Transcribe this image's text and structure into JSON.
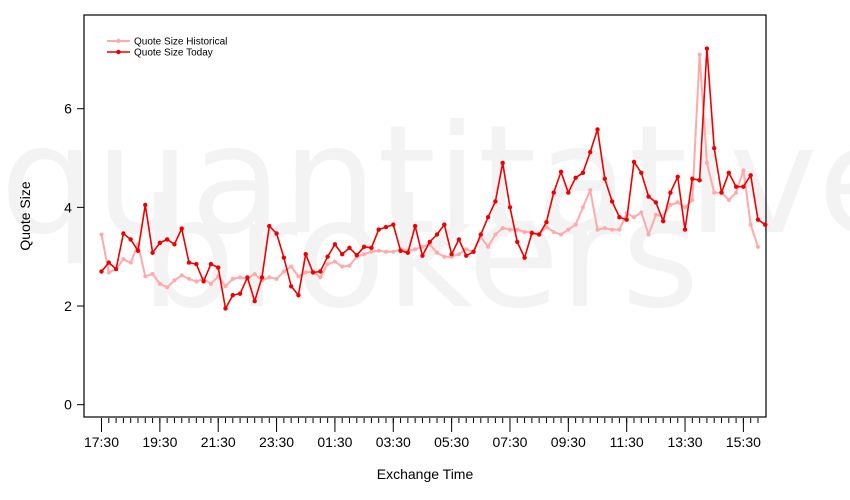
{
  "watermark": {
    "line1": "quantitative",
    "line2": "brokers"
  },
  "chart_data": {
    "type": "line",
    "xlabel": "Exchange Time",
    "ylabel": "Quote Size",
    "ylim": [
      -0.25,
      7.9
    ],
    "y_ticks": [
      0,
      2,
      4,
      6
    ],
    "x_tick_labels": [
      "17:30",
      "19:30",
      "21:30",
      "23:30",
      "01:30",
      "03:30",
      "05:30",
      "07:30",
      "09:30",
      "11:30",
      "13:30",
      "15:30"
    ],
    "x_tick_positions": [
      0,
      8,
      16,
      24,
      32,
      40,
      48,
      56,
      64,
      72,
      80,
      88
    ],
    "xlim": [
      -2.4,
      91.1
    ],
    "legend_position": "top-left",
    "series": [
      {
        "name": "Quote Size Historical",
        "color": "#ffaaaa",
        "values": [
          3.45,
          2.68,
          2.75,
          2.95,
          2.88,
          3.25,
          2.6,
          2.65,
          2.45,
          2.38,
          2.52,
          2.62,
          2.55,
          2.5,
          2.55,
          2.45,
          2.6,
          2.4,
          2.55,
          2.58,
          2.55,
          2.65,
          2.52,
          2.58,
          2.55,
          2.7,
          2.8,
          2.6,
          2.68,
          2.7,
          2.58,
          2.85,
          2.9,
          2.8,
          2.82,
          3.0,
          3.05,
          3.1,
          3.12,
          3.1,
          3.1,
          3.15,
          3.12,
          3.15,
          3.2,
          3.25,
          3.08,
          3.0,
          3.0,
          3.05,
          3.15,
          3.1,
          3.4,
          3.2,
          3.45,
          3.58,
          3.55,
          3.55,
          3.5,
          3.5,
          3.45,
          3.6,
          3.5,
          3.45,
          3.55,
          3.65,
          4.0,
          4.35,
          3.55,
          3.58,
          3.55,
          3.55,
          3.88,
          3.8,
          3.9,
          3.45,
          3.85,
          3.82,
          4.05,
          4.1,
          4.0,
          4.15,
          7.1,
          4.9,
          4.3,
          4.3,
          4.15,
          4.3,
          4.75,
          3.65,
          3.2
        ]
      },
      {
        "name": "Quote Size Today",
        "color": "#ee0000",
        "values": [
          2.7,
          2.88,
          2.75,
          3.47,
          3.35,
          3.12,
          4.05,
          3.08,
          3.28,
          3.35,
          3.25,
          3.57,
          2.88,
          2.85,
          2.5,
          2.85,
          2.78,
          1.95,
          2.22,
          2.25,
          2.58,
          2.1,
          2.58,
          3.62,
          3.47,
          2.98,
          2.4,
          2.22,
          3.05,
          2.68,
          2.7,
          3.0,
          3.25,
          3.05,
          3.18,
          3.03,
          3.2,
          3.18,
          3.55,
          3.6,
          3.65,
          3.12,
          3.08,
          3.62,
          3.02,
          3.3,
          3.45,
          3.65,
          3.05,
          3.35,
          3.02,
          3.1,
          3.45,
          3.8,
          4.12,
          4.9,
          4.0,
          3.3,
          2.98,
          3.48,
          3.45,
          3.7,
          4.3,
          4.72,
          4.3,
          4.6,
          4.7,
          5.12,
          5.58,
          4.58,
          4.12,
          3.8,
          3.75,
          4.92,
          4.7,
          4.22,
          4.1,
          3.72,
          4.3,
          4.62,
          3.55,
          4.58,
          4.55,
          7.22,
          5.2,
          4.3,
          4.7,
          4.42,
          4.42,
          4.65,
          3.75,
          3.65
        ]
      }
    ]
  }
}
